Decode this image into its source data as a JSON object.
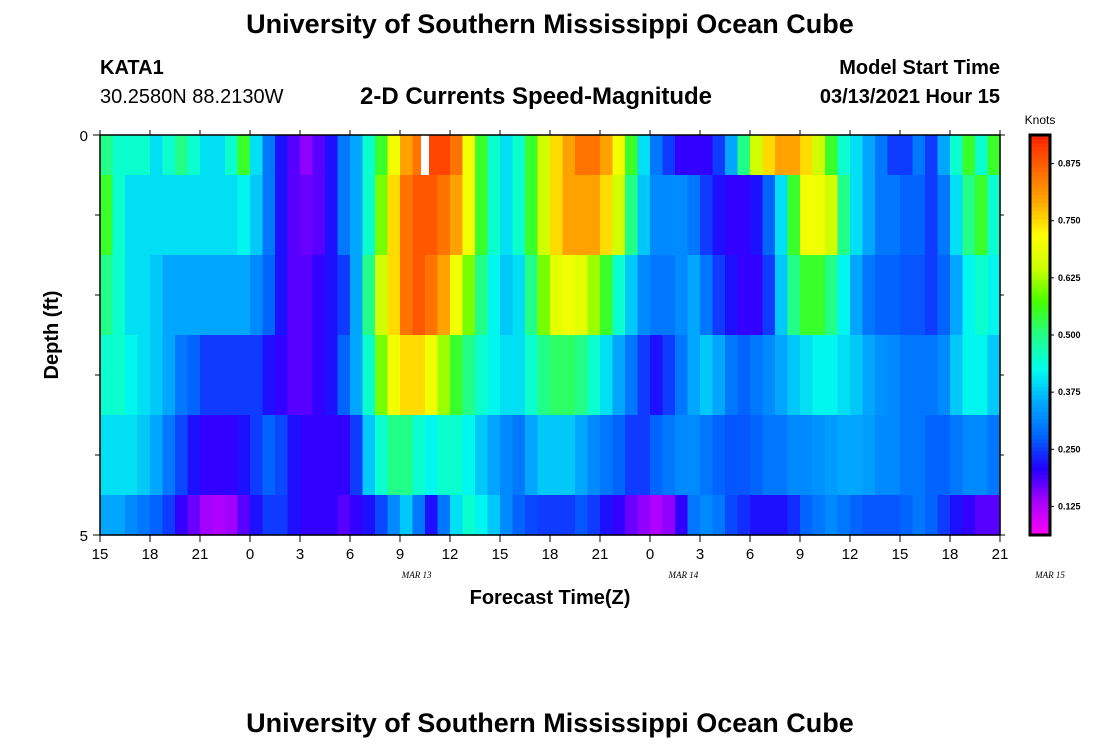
{
  "page": {
    "title": "University of Southern Mississippi Ocean Cube",
    "footer_title": "University of Southern Mississippi Ocean Cube"
  },
  "header": {
    "station_id": "KATA1",
    "station_coords": "30.2580N 88.2130W",
    "subtitle": "2-D Currents Speed-Magnitude",
    "model_start_label": "Model Start Time",
    "model_start_value": "03/13/2021 Hour 15"
  },
  "colors": {
    "colormap": [
      "#ff00ff",
      "#aa00ff",
      "#2200ff",
      "#0066ff",
      "#00aaff",
      "#00ffee",
      "#22ff88",
      "#44ff00",
      "#ccff00",
      "#ffff00",
      "#ffaa00",
      "#ff6600",
      "#ff2200"
    ],
    "missing": "#ffffff"
  },
  "chart_data": {
    "type": "heatmap",
    "title": "2-D Currents Speed-Magnitude",
    "xlabel": "Forecast Time(Z)",
    "ylabel": "Depth (ft)",
    "x_tick_labels": [
      "15",
      "18",
      "21",
      "0",
      "3",
      "6",
      "9",
      "12",
      "15",
      "18",
      "21",
      "0",
      "3",
      "6",
      "9",
      "12",
      "15",
      "18",
      "21"
    ],
    "date_labels": [
      {
        "label": "MAR  13",
        "hour": 19
      },
      {
        "label": "MAR  14",
        "hour": 35
      },
      {
        "label": "MAR  15",
        "hour": 57
      }
    ],
    "x_range_hours": [
      0,
      54
    ],
    "y_range_ft": [
      0,
      5
    ],
    "y_tick_labels": [
      "0",
      "5"
    ],
    "y_minor_ticks": [
      1,
      2,
      3,
      4
    ],
    "depth_bands_ft": [
      0,
      0.5,
      1.5,
      2.5,
      3.5,
      4.5,
      5
    ],
    "colorbar": {
      "title": "Knots",
      "min": 0.0625,
      "max": 0.9375,
      "tick_values": [
        0.125,
        0.25,
        0.375,
        0.5,
        0.625,
        0.75,
        0.875
      ],
      "tick_labels": [
        "0.125",
        "0.250",
        "0.375",
        "0.500",
        "0.625",
        "0.750",
        "0.875"
      ]
    },
    "missing_cells": [
      {
        "band": 0,
        "hour": 19.5
      }
    ],
    "speed_knots": [
      [
        0.5,
        0.45,
        0.45,
        0.45,
        0.4,
        0.45,
        0.5,
        0.45,
        0.4,
        0.4,
        0.45,
        0.55,
        0.4,
        0.3,
        0.22,
        0.18,
        0.15,
        0.18,
        0.22,
        0.3,
        0.35,
        0.45,
        0.55,
        0.7,
        0.8,
        0.85,
        0.9,
        0.9,
        0.85,
        0.7,
        0.55,
        0.45,
        0.4,
        0.45,
        0.55,
        0.65,
        0.75,
        0.8,
        0.85,
        0.85,
        0.8,
        0.7,
        0.55,
        0.4,
        0.3,
        0.25,
        0.2,
        0.2,
        0.2,
        0.25,
        0.35,
        0.5,
        0.65,
        0.75,
        0.8,
        0.8,
        0.75,
        0.65,
        0.55,
        0.45,
        0.4,
        0.35,
        0.3,
        0.25,
        0.25,
        0.3,
        0.25,
        0.35,
        0.45,
        0.55,
        0.45,
        0.55
      ],
      [
        0.55,
        0.45,
        0.4,
        0.4,
        0.4,
        0.4,
        0.4,
        0.4,
        0.4,
        0.4,
        0.4,
        0.42,
        0.38,
        0.3,
        0.22,
        0.18,
        0.17,
        0.18,
        0.22,
        0.3,
        0.35,
        0.45,
        0.6,
        0.75,
        0.85,
        0.88,
        0.88,
        0.85,
        0.8,
        0.7,
        0.55,
        0.45,
        0.4,
        0.45,
        0.55,
        0.65,
        0.75,
        0.8,
        0.8,
        0.8,
        0.75,
        0.65,
        0.5,
        0.38,
        0.32,
        0.32,
        0.32,
        0.3,
        0.25,
        0.22,
        0.2,
        0.2,
        0.22,
        0.28,
        0.4,
        0.55,
        0.7,
        0.7,
        0.65,
        0.5,
        0.4,
        0.35,
        0.3,
        0.3,
        0.28,
        0.28,
        0.25,
        0.3,
        0.4,
        0.5,
        0.55,
        0.45
      ],
      [
        0.5,
        0.45,
        0.4,
        0.4,
        0.38,
        0.35,
        0.35,
        0.35,
        0.35,
        0.35,
        0.35,
        0.35,
        0.32,
        0.28,
        0.22,
        0.18,
        0.18,
        0.2,
        0.22,
        0.25,
        0.35,
        0.5,
        0.65,
        0.75,
        0.85,
        0.88,
        0.85,
        0.8,
        0.7,
        0.6,
        0.5,
        0.42,
        0.38,
        0.4,
        0.5,
        0.6,
        0.68,
        0.7,
        0.68,
        0.62,
        0.55,
        0.45,
        0.38,
        0.32,
        0.3,
        0.3,
        0.32,
        0.35,
        0.3,
        0.25,
        0.22,
        0.2,
        0.2,
        0.25,
        0.38,
        0.5,
        0.55,
        0.55,
        0.5,
        0.42,
        0.35,
        0.3,
        0.28,
        0.28,
        0.27,
        0.27,
        0.25,
        0.28,
        0.35,
        0.42,
        0.45,
        0.42
      ],
      [
        0.45,
        0.45,
        0.42,
        0.4,
        0.38,
        0.35,
        0.3,
        0.28,
        0.25,
        0.25,
        0.25,
        0.25,
        0.25,
        0.22,
        0.2,
        0.18,
        0.18,
        0.2,
        0.22,
        0.28,
        0.35,
        0.45,
        0.6,
        0.7,
        0.75,
        0.75,
        0.7,
        0.62,
        0.55,
        0.5,
        0.45,
        0.42,
        0.4,
        0.4,
        0.45,
        0.5,
        0.52,
        0.52,
        0.5,
        0.45,
        0.4,
        0.35,
        0.3,
        0.25,
        0.22,
        0.25,
        0.3,
        0.35,
        0.38,
        0.35,
        0.3,
        0.28,
        0.3,
        0.32,
        0.35,
        0.38,
        0.4,
        0.42,
        0.42,
        0.4,
        0.38,
        0.35,
        0.33,
        0.32,
        0.3,
        0.3,
        0.3,
        0.32,
        0.38,
        0.42,
        0.42,
        0.38
      ],
      [
        0.4,
        0.4,
        0.4,
        0.38,
        0.35,
        0.3,
        0.26,
        0.22,
        0.2,
        0.2,
        0.2,
        0.22,
        0.25,
        0.28,
        0.26,
        0.22,
        0.2,
        0.2,
        0.2,
        0.2,
        0.25,
        0.38,
        0.45,
        0.5,
        0.5,
        0.45,
        0.42,
        0.45,
        0.45,
        0.42,
        0.38,
        0.35,
        0.32,
        0.3,
        0.35,
        0.38,
        0.38,
        0.38,
        0.35,
        0.32,
        0.3,
        0.28,
        0.25,
        0.25,
        0.28,
        0.3,
        0.32,
        0.32,
        0.3,
        0.28,
        0.27,
        0.27,
        0.28,
        0.3,
        0.3,
        0.32,
        0.32,
        0.33,
        0.34,
        0.35,
        0.35,
        0.34,
        0.32,
        0.32,
        0.3,
        0.3,
        0.28,
        0.28,
        0.3,
        0.32,
        0.32,
        0.3
      ],
      [
        0.35,
        0.35,
        0.32,
        0.3,
        0.28,
        0.25,
        0.2,
        0.17,
        0.14,
        0.13,
        0.14,
        0.18,
        0.22,
        0.25,
        0.25,
        0.22,
        0.2,
        0.2,
        0.2,
        0.18,
        0.2,
        0.22,
        0.26,
        0.32,
        0.38,
        0.3,
        0.22,
        0.3,
        0.4,
        0.45,
        0.42,
        0.38,
        0.32,
        0.28,
        0.26,
        0.25,
        0.25,
        0.25,
        0.27,
        0.25,
        0.22,
        0.2,
        0.17,
        0.15,
        0.13,
        0.15,
        0.2,
        0.3,
        0.32,
        0.3,
        0.26,
        0.24,
        0.22,
        0.22,
        0.22,
        0.24,
        0.28,
        0.3,
        0.32,
        0.3,
        0.28,
        0.27,
        0.27,
        0.27,
        0.28,
        0.3,
        0.28,
        0.25,
        0.22,
        0.2,
        0.18,
        0.18
      ]
    ]
  }
}
